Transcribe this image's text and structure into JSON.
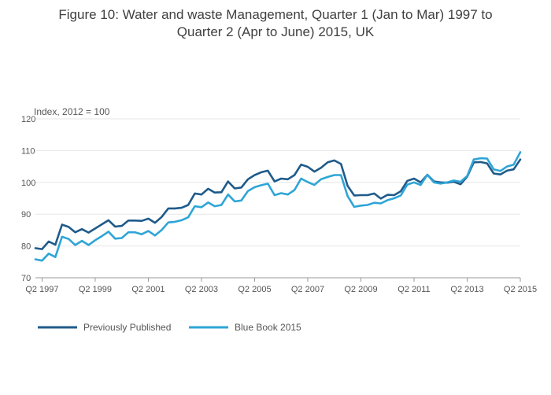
{
  "chart_data": {
    "type": "line",
    "title_lines": [
      "Figure 10: Water and waste Management, Quarter 1 (Jan to Mar) 1997 to",
      "Quarter 2 (Apr to June) 2015, UK"
    ],
    "ylabel": "Index, 2012 = 100",
    "xlabel": "",
    "ylim": [
      70,
      120
    ],
    "yticks": [
      70,
      80,
      90,
      100,
      110,
      120
    ],
    "xtick_labels": [
      "Q2 1997",
      "Q2 1999",
      "Q2 2001",
      "Q2 2003",
      "Q2 2005",
      "Q2 2007",
      "Q2 2009",
      "Q2 2011",
      "Q2 2013",
      "Q2 2015"
    ],
    "xtick_quarters": [
      "1997 Q2",
      "1999 Q2",
      "2001 Q2",
      "2003 Q2",
      "2005 Q2",
      "2007 Q2",
      "2009 Q2",
      "2011 Q2",
      "2013 Q2",
      "2015 Q2"
    ],
    "x_start": "1997 Q1",
    "x_end": "2015 Q2",
    "grid": true,
    "legend_position": "bottom-left",
    "series": [
      {
        "name": "Previously Published",
        "color": "#1f5b8a",
        "values": [
          79.3,
          79.0,
          81.4,
          80.4,
          86.7,
          86.0,
          84.3,
          85.3,
          84.2,
          85.5,
          86.8,
          88.1,
          86.1,
          86.3,
          88.0,
          88.0,
          87.9,
          88.6,
          87.3,
          89.1,
          91.8,
          91.8,
          92.0,
          92.9,
          96.5,
          96.2,
          98.0,
          96.8,
          96.9,
          100.3,
          98.1,
          98.4,
          101.0,
          102.3,
          103.2,
          103.7,
          100.3,
          101.2,
          101.0,
          102.3,
          105.6,
          104.9,
          103.4,
          104.6,
          106.3,
          106.9,
          105.8,
          98.9,
          95.9,
          96.0,
          96.0,
          96.5,
          94.9,
          96.1,
          96.0,
          97.2,
          100.5,
          101.2,
          100.0,
          102.4,
          100.3,
          100.0,
          99.9,
          100.2,
          99.4,
          101.8,
          106.3,
          106.4,
          106.0,
          102.8,
          102.5,
          103.7,
          104.1,
          107.2
        ]
      },
      {
        "name": "Blue Book 2015",
        "color": "#2ea5d6",
        "values": [
          75.8,
          75.4,
          77.6,
          76.5,
          82.9,
          82.2,
          80.3,
          81.6,
          80.3,
          81.8,
          83.1,
          84.5,
          82.3,
          82.5,
          84.3,
          84.3,
          83.7,
          84.7,
          83.3,
          85.0,
          87.4,
          87.6,
          88.1,
          89.0,
          92.5,
          92.2,
          93.7,
          92.5,
          92.9,
          96.2,
          94.0,
          94.3,
          97.3,
          98.5,
          99.1,
          99.6,
          96.0,
          96.6,
          96.2,
          97.6,
          101.2,
          100.1,
          99.2,
          101.0,
          101.7,
          102.3,
          102.3,
          95.7,
          92.3,
          92.7,
          92.9,
          93.6,
          93.4,
          94.4,
          95.0,
          95.9,
          99.3,
          100.0,
          99.2,
          102.4,
          100.0,
          99.6,
          100.0,
          100.6,
          100.2,
          102.0,
          107.2,
          107.6,
          107.5,
          104.1,
          103.6,
          105.0,
          105.6,
          109.5
        ]
      }
    ]
  }
}
